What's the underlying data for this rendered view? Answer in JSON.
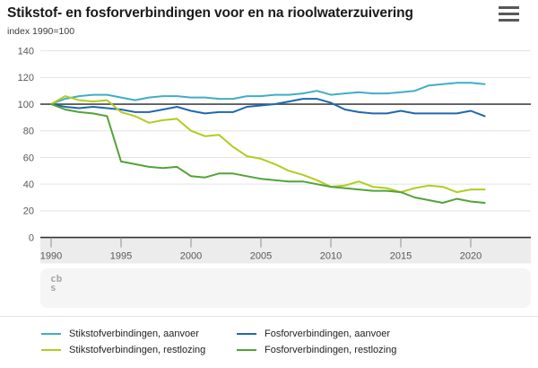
{
  "header": {
    "title": "Stikstof- en fosforverbindingen voor en na rioolwaterzuivering",
    "subtitle": "index 1990=100"
  },
  "menu": {
    "icon": "hamburger-menu-icon"
  },
  "branding": {
    "logo_top": "cb",
    "logo_bottom": "s"
  },
  "colors": {
    "title_text": "#1a1a1a",
    "axis_text": "#58595b",
    "gridline": "#e3e3e3",
    "reference_line": "#454545",
    "axis_line": "#333333",
    "axis_band": "#ececec",
    "footer_panel": "#f5f5f5",
    "separator": "#e4e4e4",
    "menu_icon": "#57585a"
  },
  "chart_data": {
    "type": "line",
    "title": "Stikstof- en fosforverbindingen voor en na rioolwaterzuivering",
    "ylabel": "index 1990=100",
    "xlabel": "",
    "ylim": [
      0,
      140
    ],
    "yticks": [
      0,
      20,
      40,
      60,
      80,
      100,
      120,
      140
    ],
    "xticks": [
      1990,
      1995,
      2000,
      2005,
      2010,
      2015,
      2020
    ],
    "reference_line": 100,
    "grid": true,
    "legend_position": "bottom",
    "x": [
      1990,
      1991,
      1992,
      1993,
      1994,
      1995,
      1996,
      1997,
      1998,
      1999,
      2000,
      2001,
      2002,
      2003,
      2004,
      2005,
      2006,
      2007,
      2008,
      2009,
      2010,
      2011,
      2012,
      2013,
      2014,
      2015,
      2016,
      2017,
      2018,
      2019,
      2020,
      2021
    ],
    "series": [
      {
        "name": "Stikstofverbindingen, aanvoer",
        "color": "#40aec5",
        "values": [
          100,
          104,
          106,
          107,
          107,
          105,
          103,
          105,
          106,
          106,
          105,
          105,
          104,
          104,
          106,
          106,
          107,
          107,
          108,
          110,
          107,
          108,
          109,
          108,
          108,
          109,
          110,
          114,
          115,
          116,
          116,
          115
        ]
      },
      {
        "name": "Fosforverbindingen, aanvoer",
        "color": "#2068ae",
        "values": [
          100,
          98,
          97,
          98,
          97,
          96,
          94,
          94,
          96,
          98,
          95,
          93,
          94,
          94,
          98,
          99,
          100,
          102,
          104,
          104,
          101,
          96,
          94,
          93,
          93,
          95,
          93,
          93,
          93,
          93,
          95,
          91
        ]
      },
      {
        "name": "Stikstofverbindingen, restlozing",
        "color": "#b3cc1f",
        "values": [
          100,
          106,
          103,
          102,
          103,
          94,
          91,
          86,
          88,
          89,
          80,
          76,
          77,
          68,
          61,
          59,
          55,
          50,
          47,
          43,
          38,
          39,
          42,
          38,
          37,
          34,
          37,
          39,
          38,
          34,
          36,
          36
        ]
      },
      {
        "name": "Fosforverbindingen, restlozing",
        "color": "#53a337",
        "values": [
          100,
          96,
          94,
          93,
          91,
          57,
          55,
          53,
          52,
          53,
          46,
          45,
          48,
          48,
          46,
          44,
          43,
          42,
          42,
          40,
          38,
          37,
          36,
          35,
          35,
          34,
          30,
          28,
          26,
          29,
          27,
          26
        ]
      }
    ]
  }
}
